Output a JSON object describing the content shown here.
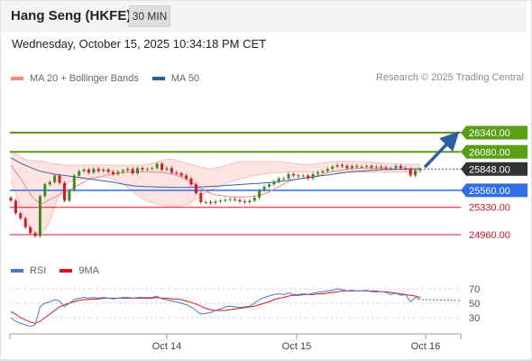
{
  "header": {
    "title": "Hang Seng (HKFE)",
    "interval": "30 MIN",
    "timestamp": "Wednesday, October 15, 2025 10:34:18 PM CET"
  },
  "legend": {
    "ma20_label": "MA 20 + Bollinger Bands",
    "ma20_color": "#f08a85",
    "ma50_label": "MA 50",
    "ma50_color": "#2d5da0"
  },
  "credit": "Research © 2025 Trading Central",
  "rsi_legend": {
    "rsi_label": "RSI",
    "rsi_color": "#4a76d4",
    "ma_label": "9MA",
    "ma_color": "#e0141c"
  },
  "chart_data": {
    "type": "candlestick",
    "x_ticks": [
      "Oct 14",
      "Oct 15",
      "Oct 16"
    ],
    "price_levels": [
      {
        "label": "26340.00",
        "value": 26340,
        "kind": "resistance",
        "color": "#5a9e14"
      },
      {
        "label": "26080.00",
        "value": 26080,
        "kind": "resistance",
        "color": "#5a9e14"
      },
      {
        "label": "25848.00",
        "value": 25848,
        "kind": "last",
        "color": "#333333"
      },
      {
        "label": "25560.00",
        "value": 25560,
        "kind": "pivot",
        "color": "#2f6ee8"
      },
      {
        "label": "25330.00",
        "value": 25330,
        "kind": "support",
        "color": "#e0141c"
      },
      {
        "label": "24960.00",
        "value": 24960,
        "kind": "support",
        "color": "#e0141c"
      }
    ],
    "close": [
      25420,
      25250,
      25180,
      25060,
      24980,
      24940,
      25480,
      25640,
      25670,
      25760,
      25660,
      25420,
      25560,
      25760,
      25820,
      25840,
      25800,
      25850,
      25820,
      25840,
      25810,
      25780,
      25810,
      25830,
      25850,
      25790,
      25860,
      25840,
      25850,
      25860,
      25920,
      25840,
      25860,
      25800,
      25790,
      25760,
      25720,
      25640,
      25520,
      25400,
      25400,
      25390,
      25410,
      25420,
      25430,
      25440,
      25430,
      25410,
      25400,
      25420,
      25460,
      25560,
      25610,
      25640,
      25680,
      25720,
      25720,
      25780,
      25760,
      25750,
      25760,
      25720,
      25780,
      25800,
      25820,
      25850,
      25880,
      25900,
      25890,
      25860,
      25890,
      25880,
      25880,
      25890,
      25870,
      25880,
      25870,
      25860,
      25860,
      25890,
      25860,
      25850,
      25760,
      25830,
      25848
    ],
    "ma20": [
      25900,
      25800,
      25700,
      25580,
      25470,
      25400,
      25380,
      25430,
      25460,
      25500,
      25540,
      25570,
      25610,
      25650,
      25690,
      25720,
      25730,
      25750,
      25770,
      25780,
      25790,
      25800,
      25805,
      25810,
      25810,
      25810,
      25810,
      25805,
      25800,
      25790,
      25780,
      25760,
      25730,
      25690,
      25650,
      25600,
      25560,
      25520,
      25500,
      25490,
      25480,
      25470,
      25470,
      25470,
      25470,
      25480,
      25490,
      25510,
      25540,
      25580,
      25620,
      25660,
      25690,
      25710,
      25720,
      25730,
      25740,
      25760,
      25780,
      25800,
      25820,
      25830,
      25840,
      25850,
      25855,
      25860,
      25860,
      25860,
      25858,
      25855,
      25850,
      25848,
      25845,
      25845,
      25845,
      25845,
      25845
    ],
    "bb_upper": [
      26100,
      26050,
      26000,
      25970,
      25960,
      25960,
      25950,
      25930,
      25920,
      25910,
      25900,
      25900,
      25900,
      25900,
      25900,
      25900,
      25900,
      25900,
      25900,
      25900,
      25900,
      25900,
      25900,
      25900,
      25900,
      25910,
      25920,
      25940,
      25960,
      25980,
      25980,
      25960,
      25940,
      25920,
      25900,
      25880,
      25860,
      25850,
      25860,
      25880,
      25900,
      25920,
      25940,
      25950,
      25950,
      25950,
      25950,
      25950,
      25950,
      25950,
      25950,
      25940,
      25930,
      25920,
      25910,
      25910,
      25910,
      25920,
      25930,
      25940,
      25950,
      25950,
      25950,
      25950,
      25950,
      25950,
      25945,
      25940,
      25935,
      25930,
      25925,
      25920,
      25915,
      25912,
      25910,
      25910,
      25910
    ],
    "bb_lower": [
      25700,
      25500,
      25300,
      25100,
      25000,
      24980,
      25000,
      25100,
      25300,
      25500,
      25620,
      25680,
      25700,
      25710,
      25720,
      25730,
      25740,
      25740,
      25730,
      25710,
      25680,
      25640,
      25580,
      25520,
      25470,
      25430,
      25400,
      25380,
      25360,
      25350,
      25340,
      25340,
      25350,
      25380,
      25420,
      25470,
      25520,
      25560,
      25590,
      25620,
      25650,
      25680,
      25700,
      25720,
      25740,
      25760,
      25770,
      25780,
      25790,
      25800,
      25800,
      25805,
      25810,
      25810,
      25810,
      25810,
      25808,
      25806,
      25805,
      25805,
      25805,
      25805,
      25805,
      25805,
      25805,
      25805,
      25805,
      25805,
      25805,
      25805,
      25805,
      25805,
      25805,
      25805,
      25805,
      25805,
      25805
    ],
    "ma50": [
      26000,
      25960,
      25920,
      25890,
      25860,
      25830,
      25810,
      25795,
      25780,
      25770,
      25760,
      25750,
      25740,
      25730,
      25720,
      25710,
      25700,
      25690,
      25680,
      25670,
      25655,
      25640,
      25630,
      25620,
      25615,
      25610,
      25608,
      25606,
      25604,
      25602,
      25600,
      25600,
      25600,
      25600,
      25602,
      25605,
      25608,
      25612,
      25616,
      25620,
      25625,
      25630,
      25635,
      25640,
      25645,
      25650,
      25655,
      25660,
      25665,
      25670,
      25680,
      25690,
      25700,
      25710,
      25720,
      25730,
      25740,
      25750,
      25760,
      25770,
      25780,
      25790,
      25800,
      25810,
      25815,
      25820,
      25825,
      25830,
      25835,
      25840,
      25842,
      25844,
      25846,
      25848,
      25850,
      25850,
      25850
    ],
    "forecast_arrow": {
      "from": 25848,
      "to": 26340
    },
    "rsi_ticks": [
      70,
      50,
      30
    ],
    "rsi": [
      30,
      25,
      22,
      20,
      18,
      20,
      45,
      50,
      52,
      55,
      53,
      45,
      50,
      55,
      57,
      58,
      57,
      58,
      57,
      58,
      57,
      56,
      57,
      58,
      58,
      57,
      58,
      58,
      58,
      58,
      60,
      56,
      55,
      53,
      52,
      50,
      48,
      45,
      40,
      35,
      36,
      37,
      40,
      42,
      45,
      46,
      45,
      44,
      45,
      46,
      50,
      55,
      58,
      60,
      62,
      63,
      62,
      64,
      62,
      62,
      63,
      62,
      64,
      65,
      66,
      67,
      68,
      70,
      69,
      67,
      68,
      67,
      67,
      68,
      66,
      66,
      66,
      65,
      62,
      64,
      61,
      62,
      52,
      58,
      55
    ],
    "rsi_ma": [
      38,
      35,
      30,
      27,
      24,
      22,
      25,
      30,
      35,
      40,
      45,
      48,
      50,
      52,
      54,
      55,
      55,
      56,
      56,
      57,
      57,
      57,
      57,
      57,
      57,
      57,
      57,
      57,
      57,
      57,
      58,
      57,
      57,
      56,
      56,
      55,
      53,
      51,
      49,
      46,
      43,
      41,
      40,
      40,
      40,
      41,
      42,
      43,
      44,
      45,
      46,
      48,
      50,
      52,
      55,
      57,
      58,
      60,
      61,
      61,
      62,
      62,
      62,
      63,
      63,
      64,
      65,
      66,
      67,
      67,
      67,
      67,
      67,
      67,
      67,
      67,
      66,
      66,
      65,
      64,
      63,
      62,
      61,
      60,
      58
    ]
  }
}
